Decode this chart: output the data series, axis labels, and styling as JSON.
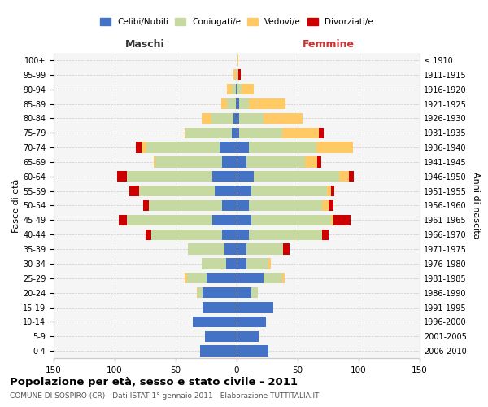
{
  "age_groups": [
    "0-4",
    "5-9",
    "10-14",
    "15-19",
    "20-24",
    "25-29",
    "30-34",
    "35-39",
    "40-44",
    "45-49",
    "50-54",
    "55-59",
    "60-64",
    "65-69",
    "70-74",
    "75-79",
    "80-84",
    "85-89",
    "90-94",
    "95-99",
    "100+"
  ],
  "birth_years": [
    "2006-2010",
    "2001-2005",
    "1996-2000",
    "1991-1995",
    "1986-1990",
    "1981-1985",
    "1976-1980",
    "1971-1975",
    "1966-1970",
    "1961-1965",
    "1956-1960",
    "1951-1955",
    "1946-1950",
    "1941-1945",
    "1936-1940",
    "1931-1935",
    "1926-1930",
    "1921-1925",
    "1916-1920",
    "1911-1915",
    "≤ 1910"
  ],
  "maschi": {
    "celibi": [
      30,
      26,
      36,
      28,
      28,
      25,
      9,
      10,
      12,
      20,
      12,
      18,
      20,
      12,
      14,
      4,
      3,
      1,
      1,
      0,
      0
    ],
    "coniugati": [
      0,
      0,
      0,
      0,
      4,
      16,
      20,
      30,
      58,
      70,
      60,
      62,
      70,
      55,
      60,
      38,
      18,
      7,
      3,
      1,
      0
    ],
    "vedovi": [
      0,
      0,
      0,
      0,
      1,
      2,
      0,
      0,
      0,
      0,
      0,
      0,
      0,
      1,
      4,
      1,
      8,
      5,
      4,
      2,
      0
    ],
    "divorziati": [
      0,
      0,
      0,
      0,
      0,
      0,
      0,
      0,
      5,
      7,
      5,
      8,
      8,
      0,
      5,
      0,
      0,
      0,
      0,
      0,
      0
    ]
  },
  "femmine": {
    "nubili": [
      26,
      18,
      24,
      30,
      12,
      22,
      8,
      8,
      10,
      12,
      10,
      12,
      14,
      8,
      10,
      2,
      2,
      2,
      0,
      0,
      0
    ],
    "coniugate": [
      0,
      0,
      0,
      0,
      5,
      15,
      18,
      30,
      60,
      65,
      60,
      62,
      70,
      48,
      55,
      35,
      20,
      8,
      4,
      0,
      0
    ],
    "vedove": [
      0,
      0,
      0,
      0,
      0,
      2,
      2,
      0,
      0,
      2,
      5,
      3,
      8,
      10,
      30,
      30,
      32,
      30,
      10,
      1,
      1
    ],
    "divorziate": [
      0,
      0,
      0,
      0,
      0,
      0,
      0,
      5,
      5,
      14,
      4,
      3,
      4,
      3,
      0,
      4,
      0,
      0,
      0,
      2,
      0
    ]
  },
  "colors": {
    "celibi_nubili": "#4472c4",
    "coniugati": "#c5d9a0",
    "vedovi": "#ffc966",
    "divorziati": "#cc0000"
  },
  "xlim": 150,
  "title": "Popolazione per età, sesso e stato civile - 2011",
  "subtitle": "COMUNE DI SOSPIRO (CR) - Dati ISTAT 1° gennaio 2011 - Elaborazione TUTTITALIA.IT",
  "xlabel_left": "Maschi",
  "xlabel_right": "Femmine",
  "ylabel_left": "Fasce di età",
  "ylabel_right": "Anni di nascita",
  "legend": [
    "Celibi/Nubili",
    "Coniugati/e",
    "Vedovi/e",
    "Divorziati/e"
  ],
  "bg_color": "#f5f5f5",
  "grid_color": "#cccccc"
}
